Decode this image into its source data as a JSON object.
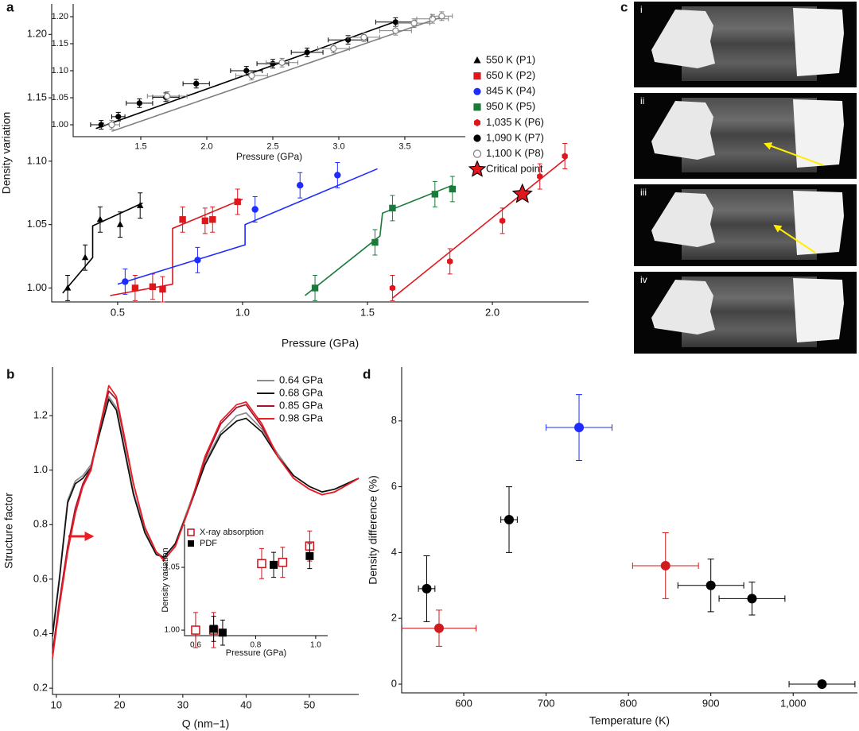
{
  "chart_data": [
    {
      "type": "scatter",
      "panel_label": "a",
      "xlabel": "Pressure (GPa)",
      "ylabel": "Density variation",
      "xlim": [
        0.236,
        2.385
      ],
      "ylim": [
        0.989,
        1.224
      ],
      "xticks": [
        0.5,
        {
          "value": 1,
          "label": "1.0"
        },
        1.5,
        {
          "value": 2,
          "label": "2.0"
        }
      ],
      "yticks": [
        {
          "value": 1,
          "label": "1.00"
        },
        1.05,
        {
          "value": 1.1,
          "label": "1.10"
        },
        1.15,
        {
          "value": 1.2,
          "label": "1.20"
        }
      ],
      "series": [
        {
          "name": "550 K (P1)",
          "color": "#000000",
          "marker": "triangle",
          "x": [
            0.3,
            0.37,
            0.43,
            0.51,
            0.59
          ],
          "values": [
            1.0,
            1.024,
            1.054,
            1.05,
            1.065
          ],
          "errors": [
            0.01,
            0.01,
            0.01,
            0.01,
            0.01
          ],
          "fit_x": [
            0.28,
            0.4,
            0.4,
            0.6
          ],
          "fit_y": [
            0.996,
            1.024,
            1.049,
            1.067
          ]
        },
        {
          "name": "650 K (P2)",
          "color": "#e0161d",
          "marker": "square",
          "x": [
            0.57,
            0.64,
            0.68,
            0.76,
            0.85,
            0.88,
            0.98
          ],
          "values": [
            1.0,
            1.001,
            0.999,
            1.054,
            1.053,
            1.054,
            1.068
          ],
          "errors": [
            0.01,
            0.01,
            0.01,
            0.01,
            0.01,
            0.01,
            0.01
          ],
          "fit_x": [
            0.47,
            0.72,
            0.72,
            1.0
          ],
          "fit_y": [
            0.994,
            1.003,
            1.047,
            1.07
          ]
        },
        {
          "name": "845 K (P4)",
          "color": "#1f2bff",
          "marker": "circle",
          "x": [
            0.53,
            0.82,
            1.05,
            1.23,
            1.38
          ],
          "values": [
            1.005,
            1.022,
            1.062,
            1.081,
            1.089
          ],
          "errors": [
            0.01,
            0.01,
            0.01,
            0.01,
            0.01
          ],
          "fit_x": [
            0.5,
            1.01,
            1.01,
            1.54
          ],
          "fit_y": [
            1.003,
            1.034,
            1.05,
            1.094
          ]
        },
        {
          "name": "950 K (P5)",
          "color": "#1a7a3a",
          "marker": "square",
          "x": [
            1.29,
            1.53,
            1.6,
            1.77,
            1.84
          ],
          "values": [
            1.0,
            1.036,
            1.063,
            1.074,
            1.078
          ],
          "errors": [
            0.01,
            0.01,
            0.01,
            0.01,
            0.01
          ],
          "fit_x": [
            1.25,
            1.55,
            1.56,
            1.84
          ],
          "fit_y": [
            0.994,
            1.041,
            1.059,
            1.081
          ]
        },
        {
          "name": "1,035 K (P6)",
          "color": "#e0161d",
          "marker": "hexagon",
          "x": [
            1.6,
            1.83,
            2.04,
            2.19,
            2.29
          ],
          "values": [
            1.0,
            1.021,
            1.053,
            1.088,
            1.104
          ],
          "errors": [
            0.01,
            0.01,
            0.01,
            0.01,
            0.01
          ],
          "fit_x": [
            1.6,
            2.3
          ],
          "fit_y": [
            0.992,
            1.103
          ]
        },
        {
          "name": "Critical point",
          "color": "#e0161d",
          "marker": "star",
          "x": [
            2.12
          ],
          "values": [
            1.074
          ]
        }
      ]
    },
    {
      "type": "scatter",
      "xlabel": "Pressure (GPa)",
      "legend": "outside right",
      "xlim": [
        0.988,
        3.958
      ],
      "ylim": [
        0.978,
        1.2235
      ],
      "xticks": [
        1.5,
        {
          "value": 2,
          "label": "2.0"
        },
        2.5,
        {
          "value": 3,
          "label": "3.0"
        },
        3.5
      ],
      "yticks": [
        {
          "value": 1,
          "label": "1.00"
        },
        1.05,
        {
          "value": 1.1,
          "label": "1.10"
        },
        1.15,
        {
          "value": 1.2,
          "label": "1.20"
        }
      ],
      "series": [
        {
          "name": "1,090 K (P7)",
          "color": "#000000",
          "marker": "circle",
          "x": [
            1.2,
            1.33,
            1.49,
            1.69,
            1.92,
            2.3,
            2.5,
            2.76,
            3.07,
            3.43
          ],
          "values": [
            1.0,
            1.015,
            1.04,
            1.051,
            1.076,
            1.1,
            1.113,
            1.134,
            1.157,
            1.19
          ],
          "errors": [
            0.008,
            0.008,
            0.008,
            0.008,
            0.008,
            0.008,
            0.008,
            0.008,
            0.008,
            0.008
          ],
          "xerr": [
            0.08,
            0.05,
            0.1,
            0.1,
            0.1,
            0.12,
            0.12,
            0.12,
            0.15,
            0.15
          ],
          "fit_x": [
            1.16,
            3.43
          ],
          "fit_y": [
            0.993,
            1.191
          ]
        },
        {
          "name": "1,100 K (P8)",
          "color": "#808080",
          "marker": "open-circle",
          "x": [
            1.28,
            1.7,
            2.34,
            2.57,
            2.96,
            3.19,
            3.43,
            3.57,
            3.71,
            3.78
          ],
          "values": [
            1.0,
            1.053,
            1.091,
            1.115,
            1.141,
            1.162,
            1.174,
            1.188,
            1.196,
            1.201
          ],
          "errors": [
            0.008,
            0.008,
            0.008,
            0.008,
            0.008,
            0.008,
            0.008,
            0.008,
            0.008,
            0.008
          ],
          "xerr": [
            0.06,
            0.15,
            0.12,
            0.12,
            0.12,
            0.12,
            0.12,
            0.12,
            0.12,
            0.08
          ],
          "fit_x": [
            1.28,
            3.8
          ],
          "fit_y": [
            0.988,
            1.201
          ]
        }
      ]
    },
    {
      "type": "line",
      "panel_label": "b",
      "xlabel": "Q (nm−1)",
      "ylabel": "Structure factor",
      "legend": "upper right",
      "xlim": [
        9.4,
        57.8
      ],
      "ylim": [
        0.177,
        1.378
      ],
      "xticks": [
        10,
        20,
        30,
        40,
        50
      ],
      "yticks": [
        0.2,
        0.4,
        0.6,
        0.8,
        {
          "value": 1,
          "label": "1.0"
        },
        1.2
      ],
      "x": [
        9.4,
        10.5,
        11.8,
        13.0,
        14.2,
        15.5,
        16.8,
        18.3,
        19.5,
        20.8,
        22.2,
        24.0,
        25.8,
        27.0,
        28.8,
        31.0,
        33.5,
        36.0,
        38.5,
        40.0,
        42.5,
        45.0,
        47.5,
        50.0,
        52.0,
        54.0,
        57.8
      ],
      "series": [
        {
          "name": "0.64 GPa",
          "color": "#8c8c8c",
          "values": [
            0.4,
            0.61,
            0.89,
            0.96,
            0.98,
            1.02,
            1.14,
            1.27,
            1.23,
            1.08,
            0.92,
            0.78,
            0.7,
            0.68,
            0.73,
            0.87,
            1.03,
            1.14,
            1.2,
            1.21,
            1.15,
            1.06,
            0.98,
            0.94,
            0.92,
            0.93,
            0.97
          ]
        },
        {
          "name": "0.68 GPa",
          "color": "#111111",
          "values": [
            0.39,
            0.6,
            0.88,
            0.95,
            0.97,
            1.01,
            1.13,
            1.26,
            1.22,
            1.07,
            0.91,
            0.77,
            0.69,
            0.68,
            0.73,
            0.86,
            1.02,
            1.13,
            1.18,
            1.19,
            1.14,
            1.05,
            0.98,
            0.94,
            0.92,
            0.93,
            0.97
          ]
        },
        {
          "name": "0.85 GPa",
          "color": "#a3122e",
          "values": [
            0.33,
            0.52,
            0.72,
            0.86,
            0.95,
            1.01,
            1.15,
            1.29,
            1.26,
            1.11,
            0.95,
            0.79,
            0.7,
            0.67,
            0.72,
            0.86,
            1.04,
            1.17,
            1.23,
            1.24,
            1.16,
            1.05,
            0.97,
            0.93,
            0.91,
            0.92,
            0.97
          ]
        },
        {
          "name": "0.98 GPa",
          "color": "#ee1c24",
          "values": [
            0.31,
            0.5,
            0.7,
            0.84,
            0.94,
            1.0,
            1.15,
            1.31,
            1.27,
            1.12,
            0.95,
            0.79,
            0.7,
            0.67,
            0.72,
            0.86,
            1.05,
            1.18,
            1.24,
            1.25,
            1.17,
            1.05,
            0.97,
            0.93,
            0.91,
            0.92,
            0.97
          ]
        }
      ]
    },
    {
      "type": "scatter",
      "xlabel": "Pressure (GPa)",
      "ylabel": "Density variation",
      "legend": "upper left",
      "xlim": [
        0.563,
        1.04
      ],
      "ylim": [
        0.9956,
        1.0842
      ],
      "xticks": [
        0.6,
        0.8,
        {
          "value": 1,
          "label": "1.0"
        }
      ],
      "yticks": [
        {
          "value": 1,
          "label": "1.00"
        },
        1.05
      ],
      "series": [
        {
          "name": "X-ray absorption",
          "color": "#c8141e",
          "marker": "open-square",
          "x": [
            0.6,
            0.66,
            0.82,
            0.89,
            0.98
          ],
          "values": [
            1.0,
            1.0,
            1.053,
            1.054,
            1.067
          ],
          "errors": [
            0.014,
            0.014,
            0.012,
            0.012,
            0.012
          ]
        },
        {
          "name": "PDF",
          "color": "#000000",
          "marker": "square",
          "x": [
            0.66,
            0.69,
            0.86,
            0.98
          ],
          "values": [
            1.001,
            0.998,
            1.052,
            1.059
          ],
          "errors": [
            0.01,
            0.01,
            0.01,
            0.01
          ]
        }
      ]
    },
    {
      "type": "scatter",
      "panel_label": "d",
      "xlabel": "Temperature (K)",
      "ylabel": "Density difference (%)",
      "xlim": [
        524.6,
        1078
      ],
      "ylim": [
        -0.266,
        9.637
      ],
      "xticks": [
        600,
        700,
        800,
        900,
        {
          "value": 1000,
          "label": "1,000"
        }
      ],
      "yticks": [
        0,
        2,
        4,
        6,
        8
      ],
      "series": [
        {
          "color": "#000000",
          "marker": "circle",
          "x": [
            555,
            655,
            900,
            950,
            1035
          ],
          "values": [
            2.9,
            5.0,
            3.0,
            2.6,
            0.0
          ],
          "errors": [
            1.0,
            1.0,
            0.8,
            0.5,
            0.0
          ],
          "xerr": [
            10,
            10,
            40,
            40,
            40
          ]
        },
        {
          "color": "#d01c1c",
          "marker": "circle",
          "x": [
            570,
            845
          ],
          "values": [
            1.7,
            3.6
          ],
          "errors": [
            0.55,
            1.0
          ],
          "xerr": [
            45,
            40
          ]
        },
        {
          "color": "#1f2bff",
          "marker": "circle",
          "x": [
            740
          ],
          "values": [
            7.8
          ],
          "errors": [
            1.0
          ],
          "xerr": [
            40
          ]
        }
      ]
    }
  ],
  "images": {
    "panel_label": "c",
    "labels": [
      "i",
      "ii",
      "iii",
      "iv"
    ]
  }
}
